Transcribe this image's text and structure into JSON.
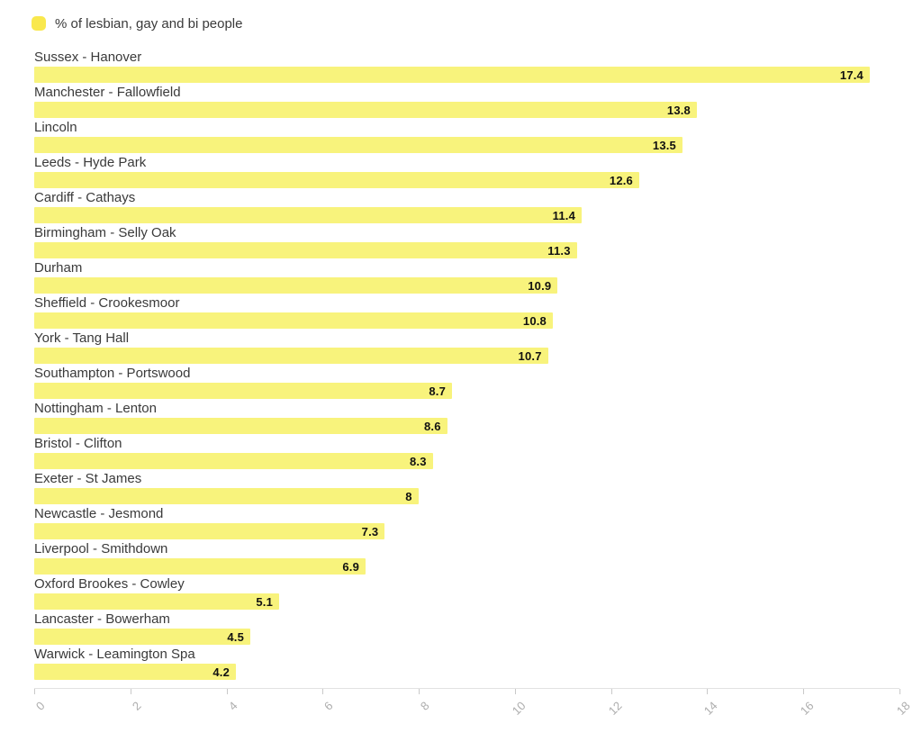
{
  "legend": {
    "label": "% of lesbian, gay and bi people",
    "swatch_color": "#f9e84d"
  },
  "colors": {
    "background": "#ffffff",
    "bar_fill": "#f8f37c",
    "bar_value_label": "#111111",
    "category_label": "#3a3a3a",
    "axis_line": "#e2e2e2",
    "axis_tick": "#c9c9c9",
    "axis_tick_label": "#adadad"
  },
  "chart_data": {
    "type": "bar",
    "orientation": "horizontal",
    "title": "",
    "series_name": "% of lesbian, gay and bi people",
    "legend_position": "top-left",
    "grid": false,
    "xlim": [
      0,
      18
    ],
    "x_ticks": [
      0,
      2,
      4,
      6,
      8,
      10,
      12,
      14,
      16,
      18
    ],
    "categories": [
      "Sussex - Hanover",
      "Manchester - Fallowfield",
      "Lincoln",
      "Leeds - Hyde Park",
      "Cardiff - Cathays",
      "Birmingham - Selly Oak",
      "Durham",
      "Sheffield - Crookesmoor",
      "York - Tang Hall",
      "Southampton - Portswood",
      "Nottingham - Lenton",
      "Bristol - Clifton",
      "Exeter - St James",
      "Newcastle - Jesmond",
      "Liverpool - Smithdown",
      "Oxford Brookes - Cowley",
      "Lancaster - Bowerham",
      "Warwick - Leamington Spa"
    ],
    "values": [
      17.4,
      13.8,
      13.5,
      12.6,
      11.4,
      11.3,
      10.9,
      10.8,
      10.7,
      8.7,
      8.6,
      8.3,
      8,
      7.3,
      6.9,
      5.1,
      4.5,
      4.2
    ],
    "value_labels": [
      "17.4",
      "13.8",
      "13.5",
      "12.6",
      "11.4",
      "11.3",
      "10.9",
      "10.8",
      "10.7",
      "8.7",
      "8.6",
      "8.3",
      "8",
      "7.3",
      "6.9",
      "5.1",
      "4.5",
      "4.2"
    ]
  }
}
